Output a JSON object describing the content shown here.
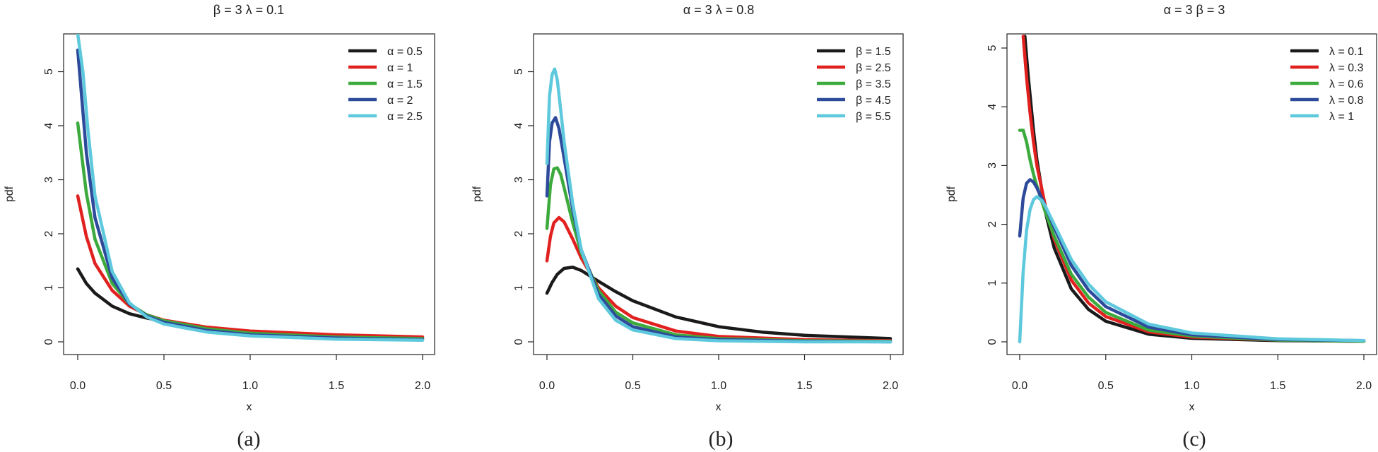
{
  "chart_data": [
    {
      "type": "line",
      "title": "β = 3  λ = 0.1",
      "xlabel": "x",
      "ylabel": "pdf",
      "caption": "(a)",
      "xlim": [
        0,
        2
      ],
      "ylim": [
        0,
        5.7
      ],
      "xticks": [
        "0.0",
        "0.5",
        "1.0",
        "1.5",
        "2.0"
      ],
      "yticks": [
        "0",
        "1",
        "2",
        "3",
        "4",
        "5"
      ],
      "legend_position": "top-right",
      "series": [
        {
          "name": "α = 0.5",
          "color": "#1a1a1a",
          "x": [
            0,
            0.05,
            0.1,
            0.2,
            0.3,
            0.4,
            0.5,
            0.75,
            1.0,
            1.5,
            2.0
          ],
          "y": [
            1.35,
            1.08,
            0.9,
            0.66,
            0.52,
            0.44,
            0.38,
            0.26,
            0.19,
            0.12,
            0.08
          ]
        },
        {
          "name": "α = 1",
          "color": "#e0211f",
          "x": [
            0,
            0.05,
            0.1,
            0.2,
            0.3,
            0.4,
            0.5,
            0.75,
            1.0,
            1.5,
            2.0
          ],
          "y": [
            2.7,
            1.95,
            1.45,
            0.95,
            0.66,
            0.5,
            0.4,
            0.27,
            0.2,
            0.13,
            0.09
          ]
        },
        {
          "name": "α = 1.5",
          "color": "#3daa3d",
          "x": [
            0,
            0.05,
            0.1,
            0.2,
            0.3,
            0.4,
            0.5,
            0.75,
            1.0,
            1.5,
            2.0
          ],
          "y": [
            4.05,
            2.75,
            1.9,
            1.08,
            0.7,
            0.5,
            0.39,
            0.24,
            0.16,
            0.09,
            0.06
          ]
        },
        {
          "name": "α = 2",
          "color": "#2d4a9b",
          "x": [
            0,
            0.05,
            0.1,
            0.2,
            0.3,
            0.4,
            0.5,
            0.75,
            1.0,
            1.5,
            2.0
          ],
          "y": [
            5.4,
            3.5,
            2.3,
            1.18,
            0.7,
            0.48,
            0.36,
            0.21,
            0.13,
            0.07,
            0.04
          ]
        },
        {
          "name": "α = 2.5",
          "color": "#5ec9dd",
          "x": [
            0.0,
            0.03,
            0.06,
            0.1,
            0.2,
            0.3,
            0.4,
            0.5,
            0.75,
            1.0,
            1.5,
            2.0
          ],
          "y": [
            5.7,
            5.0,
            3.9,
            2.7,
            1.3,
            0.72,
            0.46,
            0.33,
            0.18,
            0.11,
            0.05,
            0.03
          ]
        }
      ]
    },
    {
      "type": "line",
      "title": "α = 3  λ = 0.8",
      "xlabel": "x",
      "ylabel": "pdf",
      "caption": "(b)",
      "xlim": [
        0,
        2
      ],
      "ylim": [
        0,
        5.7
      ],
      "xticks": [
        "0.0",
        "0.5",
        "1.0",
        "1.5",
        "2.0"
      ],
      "yticks": [
        "0",
        "1",
        "2",
        "3",
        "4",
        "5"
      ],
      "legend_position": "top-right",
      "series": [
        {
          "name": "β = 1.5",
          "color": "#1a1a1a",
          "x": [
            0,
            0.03,
            0.06,
            0.1,
            0.15,
            0.2,
            0.3,
            0.4,
            0.5,
            0.75,
            1.0,
            1.25,
            1.5,
            1.75,
            2.0
          ],
          "y": [
            0.9,
            1.1,
            1.25,
            1.36,
            1.38,
            1.32,
            1.12,
            0.93,
            0.76,
            0.46,
            0.28,
            0.18,
            0.12,
            0.09,
            0.06
          ]
        },
        {
          "name": "β = 2.5",
          "color": "#e0211f",
          "x": [
            0,
            0.02,
            0.04,
            0.07,
            0.1,
            0.15,
            0.2,
            0.3,
            0.4,
            0.5,
            0.75,
            1.0,
            1.5,
            2.0
          ],
          "y": [
            1.5,
            1.95,
            2.2,
            2.3,
            2.22,
            1.9,
            1.55,
            1.0,
            0.66,
            0.45,
            0.2,
            0.1,
            0.04,
            0.02
          ]
        },
        {
          "name": "β = 3.5",
          "color": "#3daa3d",
          "x": [
            0,
            0.02,
            0.04,
            0.06,
            0.08,
            0.1,
            0.15,
            0.2,
            0.3,
            0.4,
            0.5,
            0.75,
            1.0,
            1.5,
            2.0
          ],
          "y": [
            2.1,
            2.9,
            3.2,
            3.22,
            3.1,
            2.85,
            2.2,
            1.65,
            0.95,
            0.55,
            0.35,
            0.13,
            0.06,
            0.02,
            0.01
          ]
        },
        {
          "name": "β = 4.5",
          "color": "#2d4a9b",
          "x": [
            0,
            0.015,
            0.03,
            0.05,
            0.07,
            0.1,
            0.15,
            0.2,
            0.3,
            0.4,
            0.5,
            0.75,
            1.0,
            1.5,
            2.0
          ],
          "y": [
            2.7,
            3.7,
            4.05,
            4.15,
            3.95,
            3.4,
            2.45,
            1.7,
            0.88,
            0.48,
            0.28,
            0.09,
            0.04,
            0.01,
            0.0
          ]
        },
        {
          "name": "β = 5.5",
          "color": "#5ec9dd",
          "x": [
            0,
            0.015,
            0.03,
            0.045,
            0.06,
            0.08,
            0.1,
            0.15,
            0.2,
            0.3,
            0.4,
            0.5,
            0.75,
            1.0,
            1.5,
            2.0
          ],
          "y": [
            3.3,
            4.55,
            4.95,
            5.05,
            4.85,
            4.3,
            3.7,
            2.55,
            1.7,
            0.8,
            0.4,
            0.22,
            0.06,
            0.02,
            0.0,
            0.0
          ]
        }
      ]
    },
    {
      "type": "line",
      "title": "α = 3  β = 3",
      "xlabel": "x",
      "ylabel": "pdf",
      "caption": "(c)",
      "xlim": [
        0,
        2
      ],
      "ylim": [
        0,
        5.2
      ],
      "xticks": [
        "0.0",
        "0.5",
        "1.0",
        "1.5",
        "2.0"
      ],
      "yticks": [
        "0",
        "1",
        "2",
        "3",
        "4",
        "5"
      ],
      "legend_position": "top-right",
      "series": [
        {
          "name": "λ = 0.1",
          "color": "#1a1a1a",
          "x": [
            0.03,
            0.05,
            0.08,
            0.1,
            0.15,
            0.2,
            0.3,
            0.4,
            0.5,
            0.75,
            1.0,
            1.5,
            2.0
          ],
          "y": [
            5.2,
            4.5,
            3.6,
            3.1,
            2.2,
            1.6,
            0.9,
            0.55,
            0.35,
            0.13,
            0.06,
            0.02,
            0.01
          ]
        },
        {
          "name": "λ = 0.3",
          "color": "#e0211f",
          "x": [
            0.02,
            0.04,
            0.06,
            0.08,
            0.1,
            0.15,
            0.2,
            0.3,
            0.4,
            0.5,
            0.75,
            1.0,
            1.5,
            2.0
          ],
          "y": [
            5.2,
            4.5,
            3.9,
            3.4,
            3.0,
            2.3,
            1.75,
            1.05,
            0.66,
            0.43,
            0.17,
            0.08,
            0.03,
            0.01
          ]
        },
        {
          "name": "λ = 0.6",
          "color": "#3daa3d",
          "x": [
            0,
            0.02,
            0.04,
            0.06,
            0.08,
            0.1,
            0.15,
            0.2,
            0.3,
            0.4,
            0.5,
            0.75,
            1.0,
            1.5,
            2.0
          ],
          "y": [
            3.6,
            3.6,
            3.4,
            3.1,
            2.85,
            2.65,
            2.2,
            1.8,
            1.15,
            0.76,
            0.5,
            0.2,
            0.1,
            0.03,
            0.01
          ]
        },
        {
          "name": "λ = 0.8",
          "color": "#2d4a9b",
          "x": [
            0,
            0.02,
            0.04,
            0.06,
            0.08,
            0.1,
            0.15,
            0.2,
            0.3,
            0.4,
            0.5,
            0.75,
            1.0,
            1.5,
            2.0
          ],
          "y": [
            1.8,
            2.45,
            2.7,
            2.76,
            2.72,
            2.62,
            2.3,
            1.95,
            1.3,
            0.88,
            0.6,
            0.25,
            0.12,
            0.04,
            0.02
          ]
        },
        {
          "name": "λ = 1",
          "color": "#5ec9dd",
          "x": [
            0,
            0.02,
            0.04,
            0.06,
            0.08,
            0.1,
            0.13,
            0.15,
            0.2,
            0.3,
            0.4,
            0.5,
            0.75,
            1.0,
            1.5,
            2.0
          ],
          "y": [
            0.0,
            1.2,
            1.9,
            2.25,
            2.42,
            2.47,
            2.4,
            2.3,
            2.0,
            1.4,
            0.98,
            0.68,
            0.3,
            0.15,
            0.05,
            0.02
          ]
        }
      ]
    }
  ]
}
